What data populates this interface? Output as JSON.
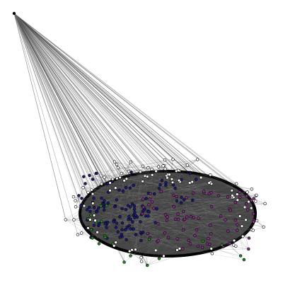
{
  "graph": {
    "description_visible_text": "",
    "colors": {
      "background": "#ffffff",
      "edge": "#3a3a3a",
      "edge_light": "#8a8a8a",
      "ellipse_fill": "#474747",
      "ellipse_border": "#000000",
      "node_outline": "#000000",
      "node_groups": {
        "blue": "#1a1a7a",
        "purple": "#8a2a8a",
        "green": "#1f8a1f",
        "white": "#ffffff"
      }
    },
    "hub_node_color": "#000000",
    "node_group_counts": {
      "blue": 120,
      "purple": 80,
      "green": 22,
      "white": 110
    }
  }
}
